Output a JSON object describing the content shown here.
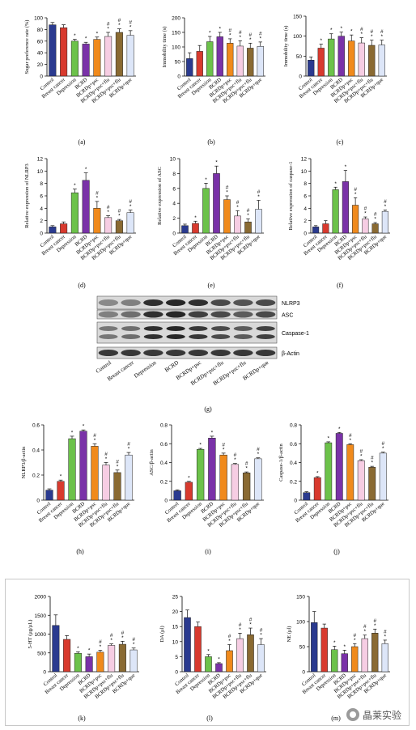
{
  "colors": {
    "Control": "#2a3a8f",
    "Breast cancer": "#d83a2e",
    "Depression": "#6cc24a",
    "BCRD": "#7a32a8",
    "BCRDp+psc": "#f08a1c",
    "BCRDp+psc+flu": "#f6cde3",
    "BCRDp+que": "#dde6f8",
    "BCRDp+psc+flu_dark": "#8a6a32"
  },
  "groups_standard": [
    "Control",
    "Breast cancer",
    "Depression",
    "BCRD",
    "BCRDp+psc",
    "BCRDp+psc+flu",
    "BCRDp+psc+flu",
    "BCRDp+que"
  ],
  "groups_m": [
    "Control",
    "Breast cancer",
    "Depression",
    "BCRD",
    "BCRDp+psc",
    "BCRDp+psc+flu",
    "BCRDp+psc+flu",
    "BCRDp+que"
  ],
  "chart_data": [
    {
      "panel": "(a)",
      "type": "bar",
      "ylabel": "Sugar preference rate (%)",
      "ylim": [
        0,
        100
      ],
      "yticks": [
        0,
        20,
        40,
        60,
        80,
        100
      ],
      "categories": [
        "Control",
        "Breast cancer",
        "Depression",
        "BCRD",
        "BCRDp+psc",
        "BCRDp+psc+flu",
        "BCRDp+psc+flu",
        "BCRDp+que"
      ],
      "values": [
        88,
        83,
        60,
        55,
        63,
        68,
        75,
        70
      ],
      "errors": [
        4,
        5,
        3,
        3,
        4,
        7,
        6,
        8
      ],
      "marks": [
        "",
        "",
        "*",
        "*",
        "*",
        "#*",
        "#*",
        "#*"
      ]
    },
    {
      "panel": "(b)",
      "type": "bar",
      "ylabel": "Immobility time (s)",
      "ylim": [
        0,
        200
      ],
      "yticks": [
        0,
        50,
        100,
        150,
        200
      ],
      "categories": [
        "Control",
        "Breast cancer",
        "Depression",
        "BCRD",
        "BCRDp+psc",
        "BCRDp+psc+flu",
        "BCRDp+psc+flu",
        "BCRDp+que"
      ],
      "values": [
        60,
        85,
        118,
        135,
        113,
        103,
        96,
        102
      ],
      "errors": [
        20,
        20,
        18,
        15,
        15,
        18,
        17,
        15
      ],
      "marks": [
        "",
        "",
        "*",
        "*",
        "#*",
        "#*",
        "#*",
        "#*"
      ]
    },
    {
      "panel": "(c)",
      "type": "bar",
      "ylabel": "Immobility time (s)",
      "ylim": [
        0,
        150
      ],
      "yticks": [
        0,
        50,
        100,
        150
      ],
      "categories": [
        "Control",
        "Breast cancer",
        "Depression",
        "BCRD",
        "BCRDp+psc",
        "BCRDp+psc+flu",
        "BCRDp+psc+flu",
        "BCRDp+que"
      ],
      "values": [
        40,
        70,
        93,
        100,
        88,
        83,
        77,
        78
      ],
      "errors": [
        8,
        10,
        13,
        10,
        15,
        13,
        13,
        12
      ],
      "marks": [
        "",
        "*",
        "*",
        "*",
        "*",
        "#*",
        "#*",
        "#*"
      ]
    },
    {
      "panel": "(d)",
      "type": "bar",
      "ylabel": "Relative expression of NLRP3",
      "ylim": [
        0,
        12
      ],
      "yticks": [
        0,
        2,
        4,
        6,
        8,
        10,
        12
      ],
      "categories": [
        "Control",
        "Breast cancer",
        "Depression",
        "BCRD",
        "BCRDp+psc",
        "BCRDp+psc+flu",
        "BCRDp+psc+flu",
        "BCRDp+que"
      ],
      "values": [
        1,
        1.5,
        6.5,
        8.5,
        4,
        2.5,
        2,
        3.3
      ],
      "errors": [
        0.2,
        0.3,
        0.6,
        1.2,
        1.1,
        0.3,
        0.2,
        0.4
      ],
      "marks": [
        "",
        "",
        "*",
        "*",
        "#*",
        "#*",
        "#*",
        "#*"
      ]
    },
    {
      "panel": "(e)",
      "type": "bar",
      "ylabel": "Relative expression of ASC",
      "ylim": [
        0,
        10
      ],
      "yticks": [
        0,
        2,
        4,
        6,
        8,
        10
      ],
      "categories": [
        "Control",
        "Breast cancer",
        "Depression",
        "BCRD",
        "BCRDp+psc",
        "BCRDp+psc+flu",
        "BCRDp+psc+flu",
        "BCRDp+que"
      ],
      "values": [
        1,
        1.3,
        6,
        8,
        4.5,
        2.3,
        1.5,
        3.2
      ],
      "errors": [
        0.2,
        0.3,
        0.7,
        1,
        0.5,
        0.7,
        0.4,
        1.2
      ],
      "marks": [
        "",
        "*",
        "*",
        "*",
        "#*",
        "#*",
        "#*",
        "#*"
      ]
    },
    {
      "panel": "(f)",
      "type": "bar",
      "ylabel": "Relative expression of caspase-1",
      "ylim": [
        0,
        12
      ],
      "yticks": [
        0,
        2,
        4,
        6,
        8,
        10,
        12
      ],
      "categories": [
        "Control",
        "Breast cancer",
        "Depression",
        "BCRD",
        "BCRDp+psc",
        "BCRDp+psc+flu",
        "BCRDp+psc+flu",
        "BCRDp+que"
      ],
      "values": [
        1,
        1.5,
        7,
        8.3,
        4.5,
        2.3,
        1.5,
        3.5
      ],
      "errors": [
        0.2,
        0.5,
        0.4,
        1.8,
        1.2,
        0.3,
        0.2,
        0.2
      ],
      "marks": [
        "",
        "",
        "*",
        "*",
        "#*",
        "#*",
        "#*",
        "#*"
      ]
    },
    {
      "panel": "(h)",
      "type": "bar",
      "ylabel": "NLRP3/β-actin",
      "ylim": [
        0,
        0.6
      ],
      "yticks": [
        0,
        0.2,
        0.4,
        0.6
      ],
      "categories": [
        "Control",
        "Breast cancer",
        "Depression",
        "BCRD",
        "BCRDp+psc",
        "BCRDp+psc+flu",
        "BCRDp+psc+flu",
        "BCRDp+que"
      ],
      "values": [
        0.08,
        0.15,
        0.49,
        0.55,
        0.43,
        0.28,
        0.22,
        0.36
      ],
      "errors": [
        0.01,
        0.01,
        0.02,
        0.01,
        0.02,
        0.02,
        0.02,
        0.02
      ],
      "marks": [
        "",
        "*",
        "*",
        "*",
        "#*",
        "#*",
        "#*",
        "#*"
      ]
    },
    {
      "panel": "(i)",
      "type": "bar",
      "ylabel": "ASC/β-actin",
      "ylim": [
        0,
        0.8
      ],
      "yticks": [
        0,
        0.2,
        0.4,
        0.6,
        0.8
      ],
      "categories": [
        "Control",
        "Breast cancer",
        "Depression",
        "BCRD",
        "BCRDp+psc",
        "BCRDp+psc+flu",
        "BCRDp+psc+flu",
        "BCRDp+que"
      ],
      "values": [
        0.1,
        0.19,
        0.54,
        0.66,
        0.48,
        0.38,
        0.29,
        0.44
      ],
      "errors": [
        0.01,
        0.01,
        0.01,
        0.02,
        0.02,
        0.01,
        0.01,
        0.01
      ],
      "marks": [
        "",
        "*",
        "*",
        "*",
        "#*",
        "#*",
        "#*",
        "#*"
      ]
    },
    {
      "panel": "(j)",
      "type": "bar",
      "ylabel": "Caspase-1/β-actin",
      "ylim": [
        0,
        0.8
      ],
      "yticks": [
        0,
        0.2,
        0.4,
        0.6,
        0.8
      ],
      "categories": [
        "Control",
        "Breast cancer",
        "Depression",
        "BCRD",
        "BCRDp+psc",
        "BCRDp+psc+flu",
        "BCRDp+psc+flu",
        "BCRDp+que"
      ],
      "values": [
        0.08,
        0.24,
        0.61,
        0.71,
        0.59,
        0.42,
        0.35,
        0.5
      ],
      "errors": [
        0.01,
        0.01,
        0.01,
        0.01,
        0.01,
        0.01,
        0.01,
        0.01
      ],
      "marks": [
        "",
        "*",
        "*",
        "*",
        "#*",
        "#*",
        "#*",
        "#*"
      ]
    },
    {
      "panel": "(k)",
      "type": "bar",
      "ylabel": "5-HT (μg/μL)",
      "ylim": [
        0,
        2000
      ],
      "yticks": [
        0,
        500,
        1000,
        1500,
        2000
      ],
      "categories": [
        "Control",
        "Breast cancer",
        "Depression",
        "BCRD",
        "BCRDp+psc",
        "BCRDp+psc+flu",
        "BCRDp+psc+flu",
        "BCRDp+que"
      ],
      "values": [
        1230,
        860,
        490,
        400,
        520,
        700,
        730,
        580
      ],
      "errors": [
        280,
        100,
        40,
        70,
        50,
        40,
        80,
        50
      ],
      "marks": [
        "",
        "",
        "*",
        "*",
        "#*",
        "#*",
        "#*",
        "#*"
      ]
    },
    {
      "panel": "(l)",
      "type": "bar",
      "ylabel": "DA (μl)",
      "ylim": [
        0,
        25
      ],
      "yticks": [
        0,
        5,
        10,
        15,
        20,
        25
      ],
      "categories": [
        "Control",
        "Breast cancer",
        "Depression",
        "BCRD",
        "BCRDp+psc",
        "BCRDp+psc+flu",
        "BCRDp+psc+flu",
        "BCRDp+que"
      ],
      "values": [
        18,
        15,
        5,
        2.7,
        7,
        11,
        12.3,
        9
      ],
      "errors": [
        2.5,
        1.5,
        0.7,
        0.3,
        2,
        1.8,
        2.2,
        2
      ],
      "marks": [
        "",
        "",
        "*",
        "*",
        "#*",
        "#*",
        "#*",
        "#*"
      ]
    },
    {
      "panel": "(m)",
      "type": "bar",
      "ylabel": "NE (μl)",
      "ylim": [
        0,
        150
      ],
      "yticks": [
        0,
        50,
        100,
        150
      ],
      "categories": [
        "Control",
        "Breast cancer",
        "Depression",
        "BCRD",
        "BCRDp+psc",
        "BCRDp+psc+flu",
        "BCRDp+psc+flu",
        "BCRDp+que"
      ],
      "values": [
        98,
        87,
        44,
        36,
        50,
        66,
        77,
        56
      ],
      "errors": [
        22,
        8,
        7,
        7,
        6,
        7,
        8,
        7
      ],
      "marks": [
        "",
        "",
        "*",
        "*",
        "#*",
        "#*",
        "#*",
        "#*"
      ]
    }
  ],
  "western_blot": {
    "panel": "(g)",
    "bands": [
      "NLRP3",
      "ASC",
      "Caspase-1",
      "β-Actin"
    ],
    "lanes": [
      "Control",
      "Breast cancer",
      "Depression",
      "BCRD",
      "BCRDp+psc",
      "BCRDp+psc+flu",
      "BCRDp+psc+flu",
      "BCRDp+que"
    ]
  },
  "watermark": {
    "text": "晶莱实验",
    "icon": "wechat-icon"
  }
}
